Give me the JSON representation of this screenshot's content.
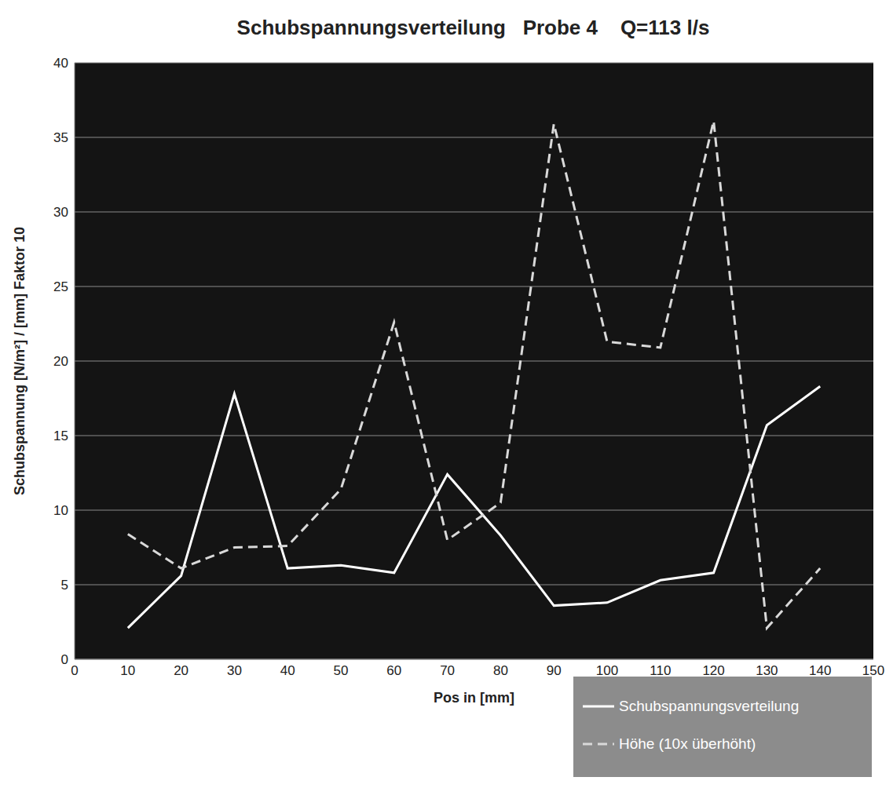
{
  "chart_data": {
    "type": "line",
    "title": "Schubspannungsverteilung   Probe 4    Q=113 l/s",
    "x_label": "Pos in [mm]",
    "y_label": "Schubspannung [N/m²]  /  [mm] Faktor 10",
    "x": [
      10,
      20,
      30,
      40,
      50,
      60,
      70,
      80,
      90,
      100,
      110,
      120,
      130,
      140
    ],
    "series": [
      {
        "name": "Schubspannungsverteilung",
        "color": "#ffffff",
        "line_style": "solid",
        "values": [
          2.1,
          5.6,
          17.8,
          6.1,
          6.3,
          5.8,
          12.4,
          8.3,
          3.6,
          3.8,
          5.3,
          5.8,
          15.7,
          18.3
        ]
      },
      {
        "name": "Höhe (10x überhöht)",
        "color": "#d9d9d9",
        "line_style": "dashed",
        "values": [
          8.4,
          6.1,
          7.5,
          7.6,
          11.4,
          22.6,
          8.0,
          10.5,
          35.9,
          21.3,
          20.9,
          36.1,
          2.1,
          6.1
        ]
      }
    ],
    "xlim": [
      0,
      150
    ],
    "xticks": [
      0,
      10,
      20,
      30,
      40,
      50,
      60,
      70,
      80,
      90,
      100,
      110,
      120,
      130,
      140,
      150
    ],
    "ylim": [
      0,
      40
    ],
    "yticks": [
      0,
      5,
      10,
      15,
      20,
      25,
      30,
      35,
      40
    ],
    "grid": true,
    "legend": "bottom-right"
  }
}
